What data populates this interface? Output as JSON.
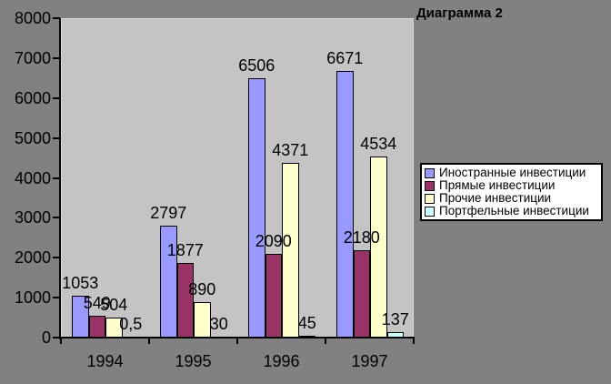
{
  "title": "Диаграмма 2",
  "chart_data": {
    "type": "bar",
    "title": "Диаграмма 2",
    "categories": [
      "1994",
      "1995",
      "1996",
      "1997"
    ],
    "series": [
      {
        "key": "foreign-investments",
        "name": "Иностранные инвестиции",
        "color": "#9999FF",
        "values": [
          1053,
          2797,
          6506,
          6671
        ],
        "labels": [
          "1053",
          "2797",
          "6506",
          "6671"
        ]
      },
      {
        "key": "direct-investments",
        "name": "Прямые инвестиции",
        "color": "#993366",
        "values": [
          549,
          1877,
          2090,
          2180
        ],
        "labels": [
          "549",
          "1877",
          "2090",
          "2180"
        ]
      },
      {
        "key": "other-investments",
        "name": "Прочие инвестиции",
        "color": "#FFFFCC",
        "values": [
          504,
          890,
          4371,
          4534
        ],
        "labels": [
          "504",
          "890",
          "4371",
          "4534"
        ]
      },
      {
        "key": "portfolio-investments",
        "name": "Портфельные инвестиции",
        "color": "#CCFFFF",
        "values": [
          0.5,
          30,
          45,
          137
        ],
        "labels": [
          "0,5",
          "30",
          "45",
          "137"
        ]
      }
    ],
    "xlabel": "",
    "ylabel": "",
    "ylim": [
      0,
      8000
    ],
    "ytick_step": 1000,
    "ytick_labels": [
      "0",
      "1000",
      "2000",
      "3000",
      "4000",
      "5000",
      "6000",
      "7000",
      "8000"
    ],
    "grid": false,
    "data_labels": true,
    "legend_position": "right"
  },
  "colors": {
    "chart_background": "#818181",
    "plot_background": "#C4C4C4",
    "axis": "#000000",
    "text": "#000000",
    "legend_background": "#FFFFFF",
    "legend_border": "#000000"
  }
}
